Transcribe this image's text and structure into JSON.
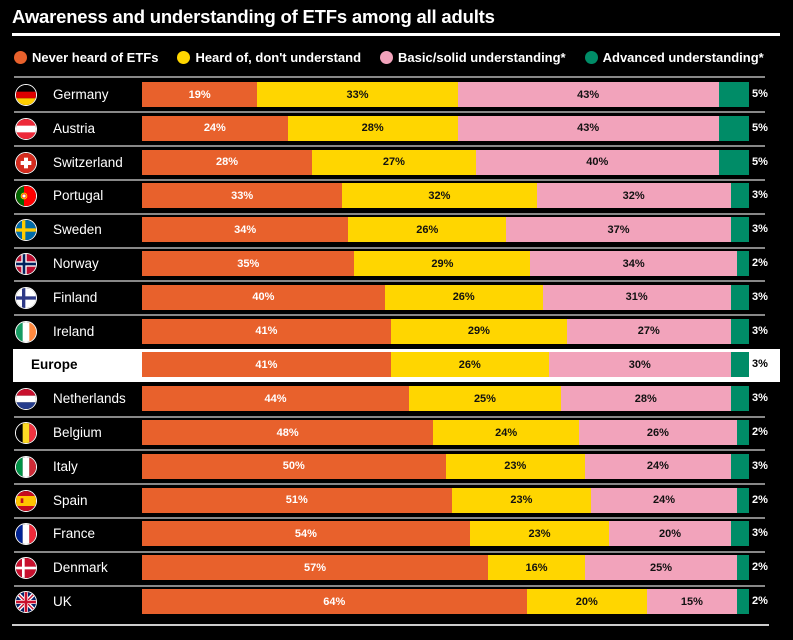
{
  "title": "Awareness and understanding of ETFs among all adults",
  "colors": {
    "never": "#E8612C",
    "heard": "#FFD600",
    "basic": "#F2A3BB",
    "advanced": "#008C67",
    "background": "#000000"
  },
  "chart_data": {
    "type": "bar",
    "orientation": "horizontal",
    "stacked": true,
    "normalized_percent": true,
    "title": "Awareness and understanding of ETFs among all adults",
    "xlabel": "",
    "ylabel": "",
    "xlim": [
      0,
      100
    ],
    "legend_position": "top",
    "legend": [
      "Never heard of ETFs",
      "Heard of, don't understand",
      "Basic/solid understanding*",
      "Advanced understanding*"
    ],
    "categories": [
      "Germany",
      "Austria",
      "Switzerland",
      "Portugal",
      "Sweden",
      "Norway",
      "Finland",
      "Ireland",
      "Europe",
      "Netherlands",
      "Belgium",
      "Italy",
      "Spain",
      "France",
      "Denmark",
      "UK"
    ],
    "flags": [
      "de",
      "at",
      "ch",
      "pt",
      "se",
      "no",
      "fi",
      "ie",
      "",
      "nl",
      "be",
      "it",
      "es",
      "fr",
      "dk",
      "uk"
    ],
    "highlight": "Europe",
    "series": [
      {
        "name": "Never heard of ETFs",
        "color": "#E8612C",
        "values": [
          19,
          24,
          28,
          33,
          34,
          35,
          40,
          41,
          41,
          44,
          48,
          50,
          51,
          54,
          57,
          64
        ]
      },
      {
        "name": "Heard of, don't understand",
        "color": "#FFD600",
        "values": [
          33,
          28,
          27,
          32,
          26,
          29,
          26,
          29,
          26,
          25,
          24,
          23,
          23,
          23,
          16,
          20
        ]
      },
      {
        "name": "Basic/solid understanding*",
        "color": "#F2A3BB",
        "values": [
          43,
          43,
          40,
          32,
          37,
          34,
          31,
          27,
          30,
          28,
          26,
          24,
          24,
          20,
          25,
          15
        ]
      },
      {
        "name": "Advanced understanding*",
        "color": "#008C67",
        "values": [
          5,
          5,
          5,
          3,
          3,
          2,
          3,
          3,
          3,
          3,
          2,
          3,
          2,
          3,
          2,
          2
        ]
      }
    ]
  }
}
